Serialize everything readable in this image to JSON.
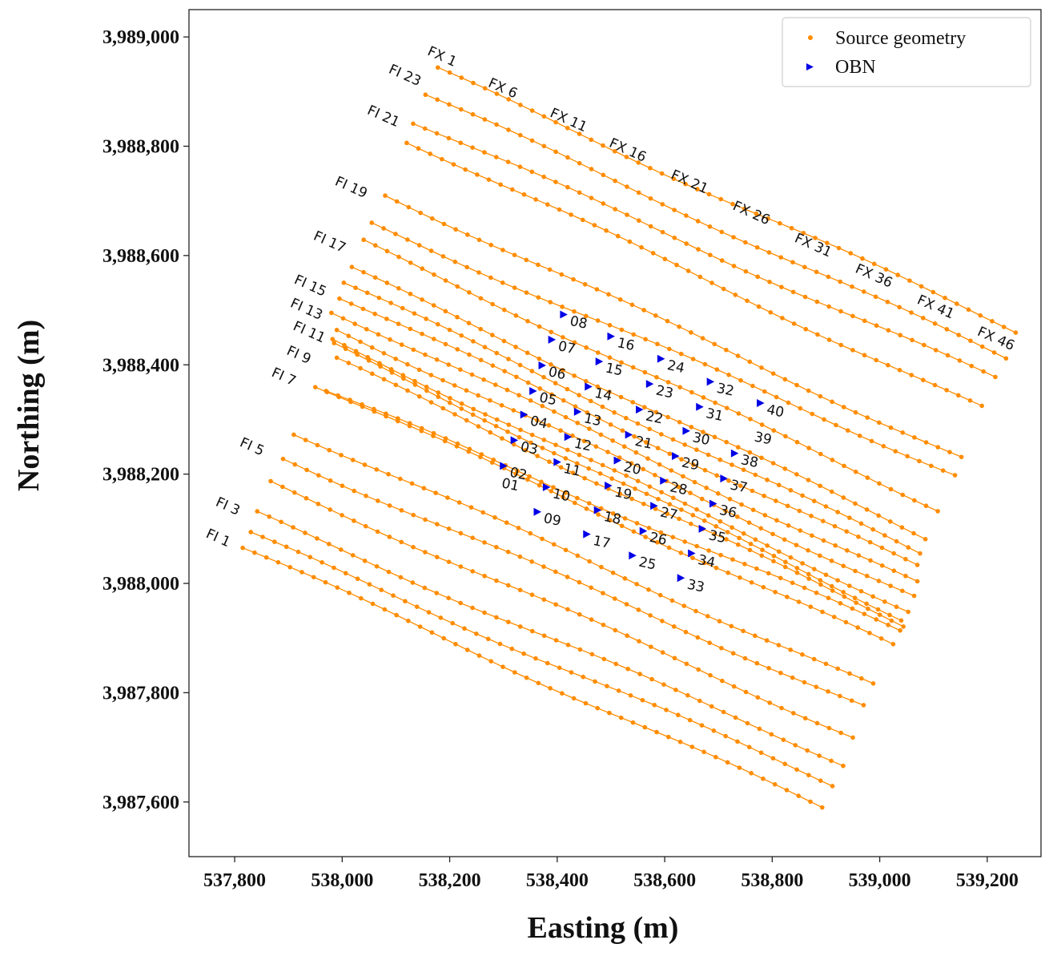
{
  "chart_data": {
    "type": "scatter",
    "xlabel": "Easting (m)",
    "ylabel": "Northing (m)",
    "xlim": [
      537715,
      539300
    ],
    "ylim": [
      3987500,
      3989050
    ],
    "x_ticks": [
      537800,
      538000,
      538200,
      538400,
      538600,
      538800,
      539000,
      539200
    ],
    "x_tick_labels": [
      "537,800",
      "538,000",
      "538,200",
      "538,400",
      "538,600",
      "538,800",
      "539,000",
      "539,200"
    ],
    "y_ticks": [
      3987600,
      3987800,
      3988000,
      3988200,
      3988400,
      3988600,
      3988800,
      3989000
    ],
    "y_tick_labels": [
      "3,987,600",
      "3,987,800",
      "3,988,000",
      "3,988,200",
      "3,988,400",
      "3,988,600",
      "3,988,800",
      "3,989,000"
    ],
    "legend": {
      "position": "top-right",
      "entries": [
        {
          "label": "Source geometry",
          "color": "#ff8c00",
          "marker": "dot"
        },
        {
          "label": "OBN",
          "color": "#0000e6",
          "marker": "triangle-right"
        }
      ]
    },
    "source_lines": [
      {
        "start": [
          537815,
          3988065
        ],
        "end": [
          538893,
          3987590
        ]
      },
      {
        "start": [
          537830,
          3988090
        ],
        "end": [
          538912,
          3987633
        ]
      },
      {
        "start": [
          537842,
          3988127
        ],
        "end": [
          538932,
          3987671
        ]
      },
      {
        "start": [
          537867,
          3988185
        ],
        "end": [
          538950,
          3987720
        ]
      },
      {
        "start": [
          537890,
          3988230
        ],
        "end": [
          538970,
          3987775
        ]
      },
      {
        "start": [
          537910,
          3988277
        ],
        "end": [
          538988,
          3987812
        ]
      },
      {
        "start": [
          537950,
          3988363
        ],
        "end": [
          539025,
          3987885
        ]
      },
      {
        "start": [
          537970,
          3988352
        ],
        "end": [
          539038,
          3987914
        ]
      },
      {
        "start": [
          537990,
          3988409
        ],
        "end": [
          539044,
          3987925
        ]
      },
      {
        "start": [
          537985,
          3988435
        ],
        "end": [
          539040,
          3987937
        ]
      },
      {
        "start": [
          537982,
          3988445
        ],
        "end": [
          539053,
          3987950
        ]
      },
      {
        "start": [
          537990,
          3988466
        ],
        "end": [
          539064,
          3987975
        ]
      },
      {
        "start": [
          537980,
          3988500
        ],
        "end": [
          539070,
          3987999
        ]
      },
      {
        "start": [
          537995,
          3988525
        ],
        "end": [
          539070,
          3988030
        ]
      },
      {
        "start": [
          538003,
          3988550
        ],
        "end": [
          539075,
          3988055
        ]
      },
      {
        "start": [
          538018,
          3988575
        ],
        "end": [
          539085,
          3988085
        ]
      },
      {
        "start": [
          538040,
          3988624
        ],
        "end": [
          539108,
          3988137
        ]
      },
      {
        "start": [
          538055,
          3988658
        ],
        "end": [
          539140,
          3988200
        ]
      },
      {
        "start": [
          538080,
          3988712
        ],
        "end": [
          539152,
          3988229
        ]
      },
      {
        "start": [
          538120,
          3988811
        ],
        "end": [
          539190,
          3988320
        ]
      },
      {
        "start": [
          538132,
          3988845
        ],
        "end": [
          539215,
          3988374
        ]
      },
      {
        "start": [
          538155,
          3988894
        ],
        "end": [
          539235,
          3988412
        ]
      },
      {
        "start": [
          538178,
          3988940
        ],
        "end": [
          539253,
          3988463
        ]
      }
    ],
    "line_labels": [
      {
        "text": "FI 1",
        "x": 537745,
        "y": 3988085
      },
      {
        "text": "FI 3",
        "x": 537763,
        "y": 3988143
      },
      {
        "text": "FI 5",
        "x": 537808,
        "y": 3988252
      },
      {
        "text": "FI 7",
        "x": 537867,
        "y": 3988380
      },
      {
        "text": "FI 9",
        "x": 537895,
        "y": 3988420
      },
      {
        "text": "FI 11",
        "x": 537907,
        "y": 3988465
      },
      {
        "text": "FI 13",
        "x": 537902,
        "y": 3988507
      },
      {
        "text": "FI 15",
        "x": 537909,
        "y": 3988550
      },
      {
        "text": "FI 17",
        "x": 537945,
        "y": 3988630
      },
      {
        "text": "FI 19",
        "x": 537985,
        "y": 3988730
      },
      {
        "text": "FI 21",
        "x": 538045,
        "y": 3988860
      },
      {
        "text": "FI 23",
        "x": 538085,
        "y": 3988935
      },
      {
        "text": "FX 1",
        "x": 538157,
        "y": 3988968
      },
      {
        "text": "FX 6",
        "x": 538270,
        "y": 3988910
      },
      {
        "text": "FX 11",
        "x": 538385,
        "y": 3988855
      },
      {
        "text": "FX 16",
        "x": 538495,
        "y": 3988800
      },
      {
        "text": "FX 21",
        "x": 538610,
        "y": 3988742
      },
      {
        "text": "FX 26",
        "x": 538725,
        "y": 3988685
      },
      {
        "text": "FX 31",
        "x": 538840,
        "y": 3988626
      },
      {
        "text": "FX  36",
        "x": 538953,
        "y": 3988570
      },
      {
        "text": "FX 41",
        "x": 539068,
        "y": 3988513
      },
      {
        "text": "FX 46",
        "x": 539180,
        "y": 3988455
      }
    ],
    "obn_nodes": [
      {
        "id": "01",
        "x": 538285,
        "y": 3988195,
        "shown": false
      },
      {
        "id": "02",
        "x": 538300,
        "y": 3988215
      },
      {
        "id": "03",
        "x": 538320,
        "y": 3988262
      },
      {
        "id": "04",
        "x": 538338,
        "y": 3988309
      },
      {
        "id": "05",
        "x": 538355,
        "y": 3988352
      },
      {
        "id": "06",
        "x": 538372,
        "y": 3988399
      },
      {
        "id": "07",
        "x": 538390,
        "y": 3988446
      },
      {
        "id": "08",
        "x": 538412,
        "y": 3988492
      },
      {
        "id": "09",
        "x": 538363,
        "y": 3988131
      },
      {
        "id": "10",
        "x": 538380,
        "y": 3988176
      },
      {
        "id": "11",
        "x": 538400,
        "y": 3988222
      },
      {
        "id": "12",
        "x": 538420,
        "y": 3988268
      },
      {
        "id": "13",
        "x": 538438,
        "y": 3988314
      },
      {
        "id": "14",
        "x": 538458,
        "y": 3988360
      },
      {
        "id": "15",
        "x": 538478,
        "y": 3988406
      },
      {
        "id": "16",
        "x": 538500,
        "y": 3988452
      },
      {
        "id": "17",
        "x": 538455,
        "y": 3988090
      },
      {
        "id": "18",
        "x": 538475,
        "y": 3988134
      },
      {
        "id": "19",
        "x": 538495,
        "y": 3988179
      },
      {
        "id": "20",
        "x": 538512,
        "y": 3988225
      },
      {
        "id": "21",
        "x": 538533,
        "y": 3988272
      },
      {
        "id": "22",
        "x": 538553,
        "y": 3988318
      },
      {
        "id": "23",
        "x": 538572,
        "y": 3988365
      },
      {
        "id": "24",
        "x": 538593,
        "y": 3988411
      },
      {
        "id": "25",
        "x": 538540,
        "y": 3988051
      },
      {
        "id": "26",
        "x": 538560,
        "y": 3988096
      },
      {
        "id": "27",
        "x": 538580,
        "y": 3988142
      },
      {
        "id": "28",
        "x": 538598,
        "y": 3988188
      },
      {
        "id": "29",
        "x": 538620,
        "y": 3988233
      },
      {
        "id": "30",
        "x": 538640,
        "y": 3988279
      },
      {
        "id": "31",
        "x": 538665,
        "y": 3988323
      },
      {
        "id": "32",
        "x": 538685,
        "y": 3988369
      },
      {
        "id": "33",
        "x": 538630,
        "y": 3988010
      },
      {
        "id": "34",
        "x": 538650,
        "y": 3988055
      },
      {
        "id": "35",
        "x": 538670,
        "y": 3988100
      },
      {
        "id": "36",
        "x": 538690,
        "y": 3988146
      },
      {
        "id": "37",
        "x": 538710,
        "y": 3988192
      },
      {
        "id": "38",
        "x": 538730,
        "y": 3988238
      },
      {
        "id": "39",
        "x": 538755,
        "y": 3988280,
        "shown": false
      },
      {
        "id": "40",
        "x": 538778,
        "y": 3988330
      }
    ]
  }
}
